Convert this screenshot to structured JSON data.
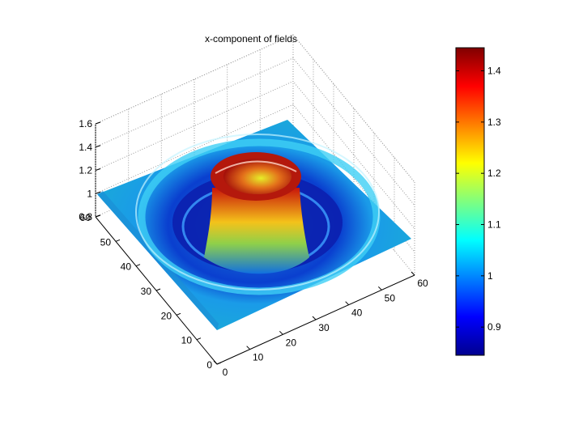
{
  "chart_data": {
    "type": "surface",
    "title": "x-component of fields",
    "xlabel": "",
    "ylabel": "",
    "zlabel": "",
    "xlim": [
      0,
      60
    ],
    "ylim": [
      0,
      60
    ],
    "zlim": [
      0.8,
      1.6
    ],
    "x_ticks": [
      "0",
      "10",
      "20",
      "30",
      "40",
      "50",
      "60"
    ],
    "y_ticks": [
      "0",
      "10",
      "20",
      "30",
      "40",
      "50",
      "60"
    ],
    "z_ticks": [
      "0.8",
      "1",
      "1.2",
      "1.4",
      "1.6"
    ],
    "grid": true,
    "surface": {
      "shape": "radial ripple over a 60x60 grid: a crater-topped central peak near 1.45 at the center (30,30), a deep trough near 0.85 around it, an outer ridge near 1.1, and a flat rim near 1.0 with small edge waves",
      "peak_value": 1.45,
      "trough_value": 0.85,
      "baseline_value": 1.0
    },
    "colorbar": {
      "colormap": "jet",
      "range": [
        0.845,
        1.445
      ],
      "ticks": [
        "0.9",
        "1",
        "1.1",
        "1.2",
        "1.3",
        "1.4"
      ],
      "placement": "right"
    }
  }
}
